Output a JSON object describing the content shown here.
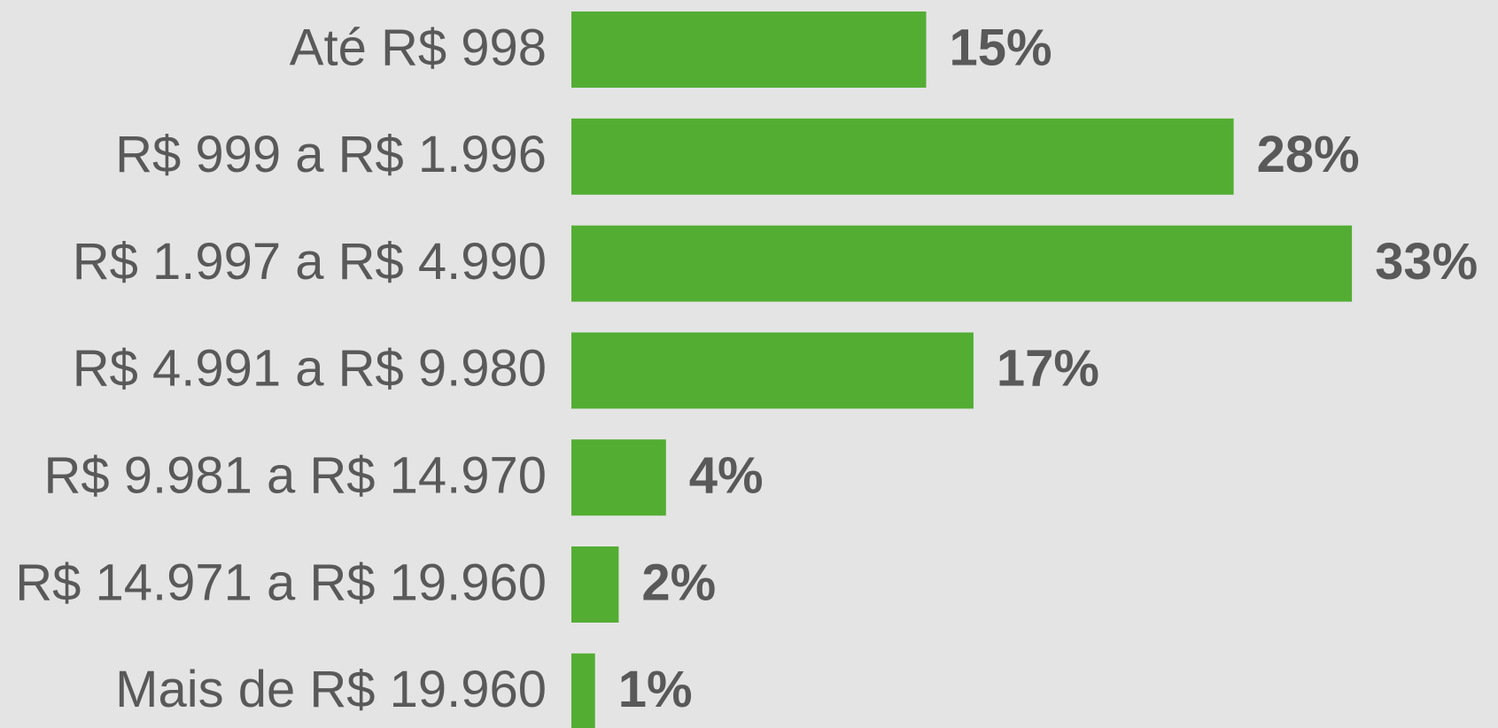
{
  "chart_data": {
    "type": "bar",
    "orientation": "horizontal",
    "categories": [
      "Até R$ 998",
      "R$ 999 a R$ 1.996",
      "R$ 1.997 a R$ 4.990",
      "R$ 4.991 a R$ 9.980",
      "R$ 9.981 a R$ 14.970",
      "R$ 14.971 a R$ 19.960",
      "Mais de R$ 19.960"
    ],
    "values": [
      15,
      28,
      33,
      17,
      4,
      2,
      1
    ],
    "value_labels": [
      "15%",
      "28%",
      "33%",
      "17%",
      "4%",
      "2%",
      "1%"
    ],
    "color": "#53ad33"
  }
}
